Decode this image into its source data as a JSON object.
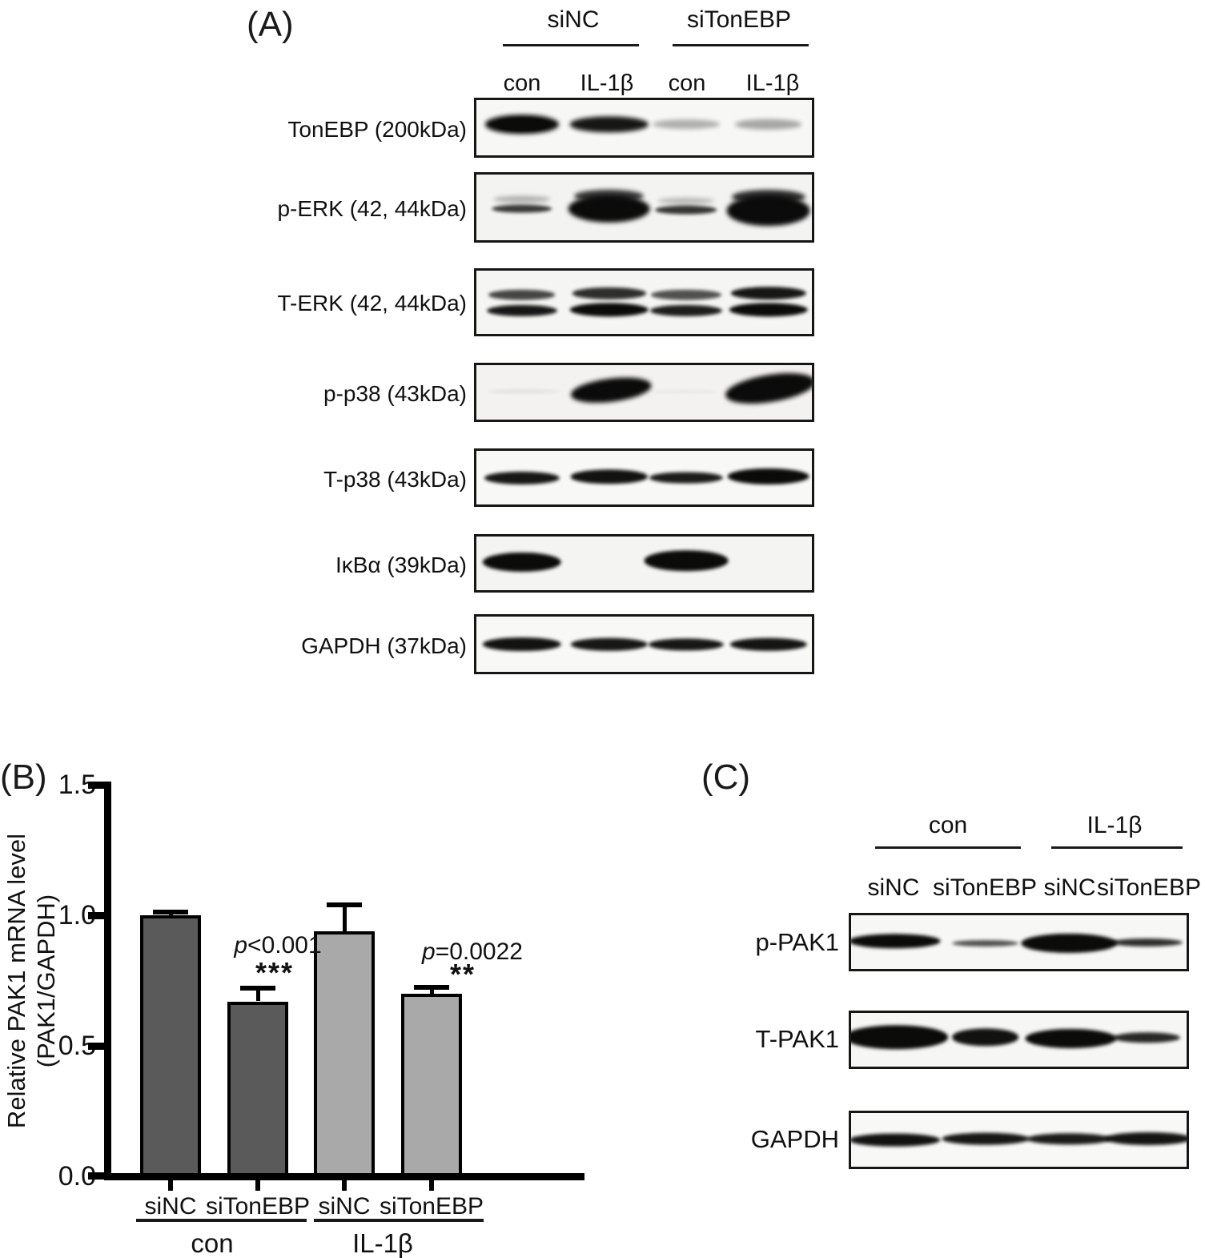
{
  "panelA": {
    "label": "(A)",
    "group_headers": [
      "siNC",
      "siTonEBP"
    ],
    "lane_headers": [
      "con",
      "IL-1β",
      "con",
      "IL-1β"
    ],
    "rows": [
      {
        "label": "TonEBP (200kDa)",
        "bands": [
          {
            "x": 0.135,
            "y": 0.44,
            "w": 0.22,
            "h": 0.34,
            "a": 1,
            "blur": 3
          },
          {
            "x": 0.135,
            "y": 0.44,
            "w": 0.16,
            "h": 0.22,
            "a": 1,
            "blur": 1
          },
          {
            "x": 0.395,
            "y": 0.44,
            "w": 0.235,
            "h": 0.28,
            "a": 0.95,
            "blur": 3
          },
          {
            "x": 0.625,
            "y": 0.44,
            "w": 0.2,
            "h": 0.17,
            "a": 0.3,
            "blur": 3
          },
          {
            "x": 0.87,
            "y": 0.44,
            "w": 0.2,
            "h": 0.18,
            "a": 0.34,
            "blur": 3
          }
        ]
      },
      {
        "label": "p-ERK (42, 44kDa)",
        "bands": [
          {
            "x": 0.135,
            "y": 0.38,
            "w": 0.17,
            "h": 0.11,
            "a": 0.28,
            "blur": 3
          },
          {
            "x": 0.135,
            "y": 0.52,
            "w": 0.18,
            "h": 0.13,
            "a": 0.8,
            "blur": 2
          },
          {
            "x": 0.395,
            "y": 0.33,
            "w": 0.21,
            "h": 0.2,
            "a": 0.8,
            "blur": 3
          },
          {
            "x": 0.395,
            "y": 0.52,
            "w": 0.245,
            "h": 0.42,
            "a": 1,
            "blur": 3
          },
          {
            "x": 0.625,
            "y": 0.4,
            "w": 0.17,
            "h": 0.1,
            "a": 0.25,
            "blur": 3
          },
          {
            "x": 0.625,
            "y": 0.54,
            "w": 0.185,
            "h": 0.13,
            "a": 0.82,
            "blur": 2
          },
          {
            "x": 0.87,
            "y": 0.34,
            "w": 0.22,
            "h": 0.22,
            "a": 0.85,
            "blur": 3
          },
          {
            "x": 0.87,
            "y": 0.55,
            "w": 0.25,
            "h": 0.46,
            "a": 1,
            "blur": 3
          }
        ]
      },
      {
        "label": "T-ERK (42, 44kDa)",
        "bands": [
          {
            "x": 0.135,
            "y": 0.38,
            "w": 0.2,
            "h": 0.16,
            "a": 0.75,
            "blur": 2
          },
          {
            "x": 0.135,
            "y": 0.63,
            "w": 0.21,
            "h": 0.18,
            "a": 0.95,
            "blur": 2
          },
          {
            "x": 0.395,
            "y": 0.36,
            "w": 0.22,
            "h": 0.18,
            "a": 0.85,
            "blur": 2
          },
          {
            "x": 0.395,
            "y": 0.62,
            "w": 0.235,
            "h": 0.22,
            "a": 1,
            "blur": 2
          },
          {
            "x": 0.625,
            "y": 0.38,
            "w": 0.21,
            "h": 0.16,
            "a": 0.7,
            "blur": 2
          },
          {
            "x": 0.625,
            "y": 0.63,
            "w": 0.215,
            "h": 0.18,
            "a": 0.92,
            "blur": 2
          },
          {
            "x": 0.87,
            "y": 0.36,
            "w": 0.225,
            "h": 0.2,
            "a": 0.95,
            "blur": 2
          },
          {
            "x": 0.87,
            "y": 0.62,
            "w": 0.235,
            "h": 0.22,
            "a": 1,
            "blur": 2
          }
        ]
      },
      {
        "label": "p-p38 (43kDa)",
        "bands": [
          {
            "x": 0.14,
            "y": 0.48,
            "w": 0.22,
            "h": 0.08,
            "a": 0.07,
            "blur": 2
          },
          {
            "x": 0.4,
            "y": 0.45,
            "w": 0.24,
            "h": 0.42,
            "a": 1,
            "blur": 3,
            "rot": -7
          },
          {
            "x": 0.62,
            "y": 0.48,
            "w": 0.2,
            "h": 0.06,
            "a": 0.05,
            "blur": 2
          },
          {
            "x": 0.875,
            "y": 0.42,
            "w": 0.27,
            "h": 0.5,
            "a": 1,
            "blur": 3,
            "rot": -9
          }
        ]
      },
      {
        "label": "T-p38 (43kDa)",
        "bands": [
          {
            "x": 0.135,
            "y": 0.5,
            "w": 0.225,
            "h": 0.24,
            "a": 0.95,
            "blur": 2
          },
          {
            "x": 0.395,
            "y": 0.48,
            "w": 0.23,
            "h": 0.26,
            "a": 0.97,
            "blur": 2
          },
          {
            "x": 0.625,
            "y": 0.5,
            "w": 0.22,
            "h": 0.22,
            "a": 0.93,
            "blur": 2
          },
          {
            "x": 0.87,
            "y": 0.48,
            "w": 0.245,
            "h": 0.3,
            "a": 1,
            "blur": 2
          }
        ]
      },
      {
        "label": "IκBα (39kDa)",
        "bands": [
          {
            "x": 0.135,
            "y": 0.48,
            "w": 0.235,
            "h": 0.36,
            "a": 1,
            "blur": 2
          },
          {
            "x": 0.625,
            "y": 0.45,
            "w": 0.25,
            "h": 0.38,
            "a": 1,
            "blur": 2
          }
        ]
      },
      {
        "label": "GAPDH (37kDa)",
        "bands": [
          {
            "x": 0.135,
            "y": 0.5,
            "w": 0.235,
            "h": 0.26,
            "a": 0.97,
            "blur": 2
          },
          {
            "x": 0.395,
            "y": 0.5,
            "w": 0.23,
            "h": 0.24,
            "a": 0.95,
            "blur": 2
          },
          {
            "x": 0.625,
            "y": 0.5,
            "w": 0.225,
            "h": 0.22,
            "a": 0.95,
            "blur": 2
          },
          {
            "x": 0.87,
            "y": 0.5,
            "w": 0.23,
            "h": 0.24,
            "a": 0.96,
            "blur": 2
          }
        ]
      }
    ]
  },
  "panelB": {
    "label": "(B)"
  },
  "chart_data": {
    "type": "bar",
    "categories": [
      "siNC",
      "siTonEBP",
      "siNC",
      "siTonEBP"
    ],
    "group_labels": [
      "con",
      "IL-1β"
    ],
    "values": [
      1.0,
      0.67,
      0.94,
      0.7
    ],
    "errors": [
      0.012,
      0.05,
      0.1,
      0.025
    ],
    "bar_colors": [
      "#5a5a5a",
      "#5a5a5a",
      "#a9a9a9",
      "#a9a9a9"
    ],
    "ylabel_line1": "Relative PAK1 mRNA level",
    "ylabel_line2": "(PAK1/GAPDH)",
    "ylim": [
      0,
      1.5
    ],
    "ytick_labels": [
      "1.5",
      "1.0",
      "0.5",
      "0.0"
    ],
    "grid": false,
    "annotations": [
      {
        "prefix": "p",
        "text": "<0.001",
        "stars": "***"
      },
      {
        "prefix": "p",
        "text": "=0.0022",
        "stars": "**"
      }
    ]
  },
  "panelC": {
    "label": "(C)",
    "group_headers": [
      "con",
      "IL-1β"
    ],
    "lane_headers": [
      "siNC",
      "siTonEBP",
      "siNC",
      "siTonEBP"
    ],
    "rows": [
      {
        "label": "p-PAK1",
        "bands": [
          {
            "x": 0.13,
            "y": 0.48,
            "w": 0.27,
            "h": 0.26,
            "a": 1,
            "blur": 2
          },
          {
            "x": 0.4,
            "y": 0.52,
            "w": 0.2,
            "h": 0.12,
            "a": 0.7,
            "blur": 2
          },
          {
            "x": 0.65,
            "y": 0.52,
            "w": 0.285,
            "h": 0.36,
            "a": 1,
            "blur": 2
          },
          {
            "x": 0.88,
            "y": 0.5,
            "w": 0.215,
            "h": 0.15,
            "a": 0.85,
            "blur": 2
          }
        ]
      },
      {
        "label": "T-PAK1",
        "bands": [
          {
            "x": 0.135,
            "y": 0.45,
            "w": 0.31,
            "h": 0.44,
            "a": 1,
            "blur": 2
          },
          {
            "x": 0.4,
            "y": 0.45,
            "w": 0.2,
            "h": 0.32,
            "a": 0.97,
            "blur": 2
          },
          {
            "x": 0.655,
            "y": 0.48,
            "w": 0.27,
            "h": 0.36,
            "a": 1,
            "blur": 2
          },
          {
            "x": 0.88,
            "y": 0.46,
            "w": 0.2,
            "h": 0.2,
            "a": 0.88,
            "blur": 2
          }
        ]
      },
      {
        "label": "GAPDH",
        "bands": [
          {
            "x": 0.13,
            "y": 0.5,
            "w": 0.27,
            "h": 0.25,
            "a": 0.97,
            "blur": 2
          },
          {
            "x": 0.4,
            "y": 0.48,
            "w": 0.26,
            "h": 0.22,
            "a": 0.95,
            "blur": 2
          },
          {
            "x": 0.65,
            "y": 0.48,
            "w": 0.25,
            "h": 0.2,
            "a": 0.93,
            "blur": 2
          },
          {
            "x": 0.885,
            "y": 0.48,
            "w": 0.26,
            "h": 0.24,
            "a": 0.96,
            "blur": 2
          }
        ]
      }
    ]
  }
}
